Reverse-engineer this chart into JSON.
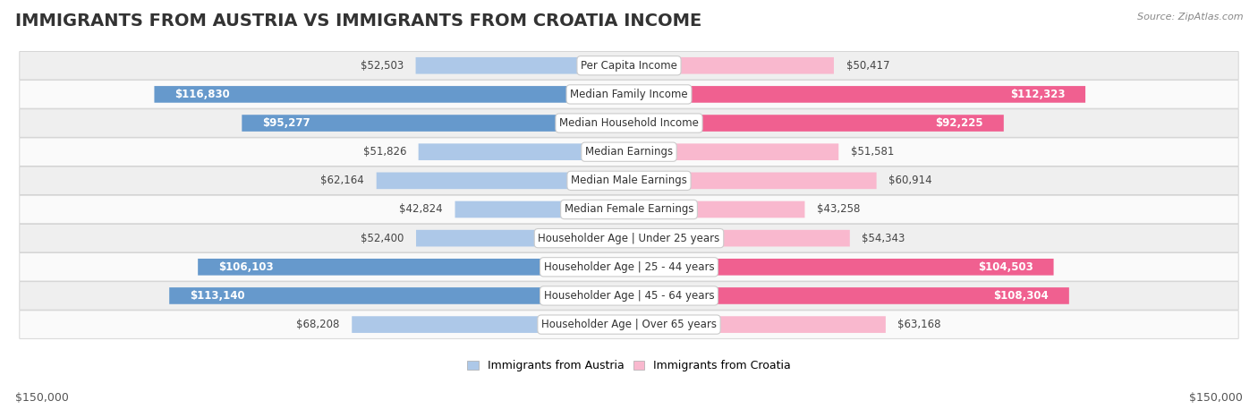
{
  "title": "IMMIGRANTS FROM AUSTRIA VS IMMIGRANTS FROM CROATIA INCOME",
  "source": "Source: ZipAtlas.com",
  "categories": [
    "Per Capita Income",
    "Median Family Income",
    "Median Household Income",
    "Median Earnings",
    "Median Male Earnings",
    "Median Female Earnings",
    "Householder Age | Under 25 years",
    "Householder Age | 25 - 44 years",
    "Householder Age | 45 - 64 years",
    "Householder Age | Over 65 years"
  ],
  "austria_values": [
    52503,
    116830,
    95277,
    51826,
    62164,
    42824,
    52400,
    106103,
    113140,
    68208
  ],
  "croatia_values": [
    50417,
    112323,
    92225,
    51581,
    60914,
    43258,
    54343,
    104503,
    108304,
    63168
  ],
  "austria_labels": [
    "$52,503",
    "$116,830",
    "$95,277",
    "$51,826",
    "$62,164",
    "$42,824",
    "$52,400",
    "$106,103",
    "$113,140",
    "$68,208"
  ],
  "croatia_labels": [
    "$50,417",
    "$112,323",
    "$92,225",
    "$51,581",
    "$60,914",
    "$43,258",
    "$54,343",
    "$104,503",
    "$108,304",
    "$63,168"
  ],
  "austria_color_light": "#adc8e8",
  "austria_color_dark": "#6699cc",
  "croatia_color_light": "#f9b8ce",
  "croatia_color_dark": "#f06090",
  "max_value": 150000,
  "row_bg_even": "#efefef",
  "row_bg_odd": "#fafafa",
  "row_border": "#d0d0d0",
  "legend_austria": "Immigrants from Austria",
  "legend_croatia": "Immigrants from Croatia",
  "xlabel_left": "$150,000",
  "xlabel_right": "$150,000",
  "title_fontsize": 14,
  "label_fontsize": 8.5,
  "cat_fontsize": 8.5,
  "inside_threshold": 80000
}
